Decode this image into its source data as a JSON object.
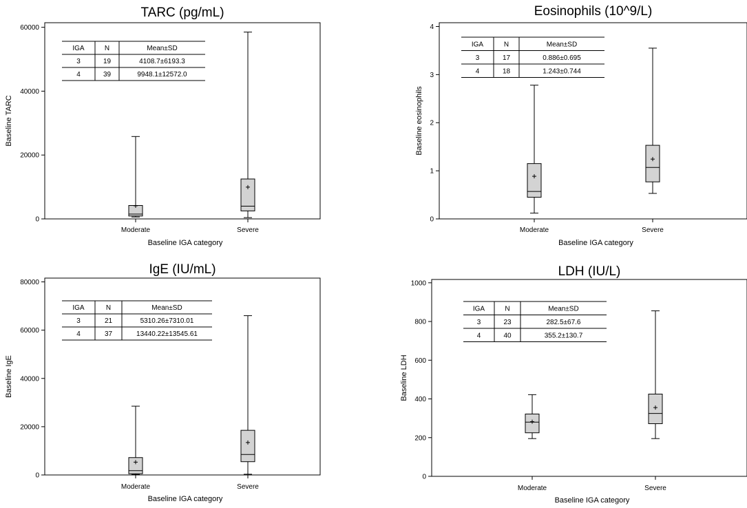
{
  "chart_data": [
    {
      "type": "box",
      "title": "TARC (pg/mL)",
      "xlabel": "Baseline IGA category",
      "ylabel": "Baseline TARC",
      "ylim": [
        0,
        61000
      ],
      "yticks": [
        0,
        20000,
        40000,
        60000
      ],
      "categories": [
        "Moderate",
        "Severe"
      ],
      "boxes": [
        {
          "category": "Moderate",
          "min": 600,
          "q1": 900,
          "median": 1500,
          "q3": 4200,
          "max": 25800,
          "mean": 4108.7
        },
        {
          "category": "Severe",
          "min": 400,
          "q1": 2500,
          "median": 4000,
          "q3": 12500,
          "max": 58500,
          "mean": 9948.1
        }
      ],
      "table": {
        "headers": [
          "IGA",
          "N",
          "Mean±SD"
        ],
        "rows": [
          [
            "3",
            "19",
            "4108.7±6193.3"
          ],
          [
            "4",
            "39",
            "9948.1±12572.0"
          ]
        ]
      }
    },
    {
      "type": "box",
      "title": "Eosinophils (10^9/L)",
      "xlabel": "Baseline IGA category",
      "ylabel": "Baseline eosinophils",
      "ylim": [
        0,
        4.05
      ],
      "yticks": [
        0,
        1,
        2,
        3,
        4
      ],
      "categories": [
        "Moderate",
        "Severe"
      ],
      "boxes": [
        {
          "category": "Moderate",
          "min": 0.12,
          "q1": 0.45,
          "median": 0.57,
          "q3": 1.15,
          "max": 2.78,
          "mean": 0.886
        },
        {
          "category": "Severe",
          "min": 0.53,
          "q1": 0.77,
          "median": 1.07,
          "q3": 1.53,
          "max": 3.55,
          "mean": 1.243
        }
      ],
      "table": {
        "headers": [
          "IGA",
          "N",
          "Mean±SD"
        ],
        "rows": [
          [
            "3",
            "17",
            "0.886±0.695"
          ],
          [
            "4",
            "18",
            "1.243±0.744"
          ]
        ]
      }
    },
    {
      "type": "box",
      "title": "IgE (IU/mL)",
      "xlabel": "Baseline IGA category",
      "ylabel": "Baseline IgE",
      "ylim": [
        0,
        81000
      ],
      "yticks": [
        0,
        20000,
        40000,
        60000,
        80000
      ],
      "categories": [
        "Moderate",
        "Severe"
      ],
      "boxes": [
        {
          "category": "Moderate",
          "min": 200,
          "q1": 500,
          "median": 1800,
          "q3": 7200,
          "max": 28500,
          "mean": 5310.26
        },
        {
          "category": "Severe",
          "min": 300,
          "q1": 5500,
          "median": 8500,
          "q3": 18500,
          "max": 66000,
          "mean": 13440.22
        }
      ],
      "table": {
        "headers": [
          "IGA",
          "N",
          "Mean±SD"
        ],
        "rows": [
          [
            "3",
            "21",
            "5310.26±7310.01"
          ],
          [
            "4",
            "37",
            "13440.22±13545.61"
          ]
        ]
      }
    },
    {
      "type": "box",
      "title": "LDH (IU/L)",
      "xlabel": "Baseline IGA category",
      "ylabel": "Baseline LDH",
      "ylim": [
        0,
        1010
      ],
      "yticks": [
        0,
        200,
        400,
        600,
        800,
        1000
      ],
      "categories": [
        "Moderate",
        "Severe"
      ],
      "boxes": [
        {
          "category": "Moderate",
          "min": 195,
          "q1": 225,
          "median": 280,
          "q3": 322,
          "max": 422,
          "mean": 282.5
        },
        {
          "category": "Severe",
          "min": 195,
          "q1": 272,
          "median": 325,
          "q3": 425,
          "max": 855,
          "mean": 355.2
        }
      ],
      "table": {
        "headers": [
          "IGA",
          "N",
          "Mean±SD"
        ],
        "rows": [
          [
            "3",
            "23",
            "282.5±67.6"
          ],
          [
            "4",
            "40",
            "355.2±130.7"
          ]
        ]
      }
    }
  ]
}
